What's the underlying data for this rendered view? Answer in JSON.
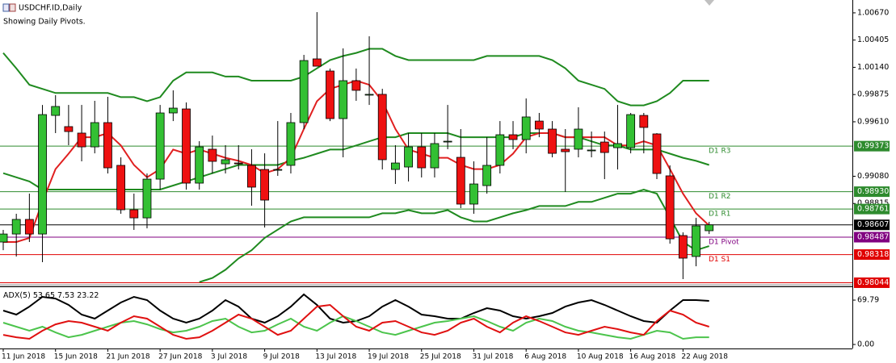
{
  "chart_data": [
    {
      "type": "candlestick",
      "title": "USDCHF.ID,Daily",
      "subtitle": "Showing Daily Pivots.",
      "categories": [
        "11 Jun 2018",
        null,
        null,
        null,
        "15 Jun 2018",
        null,
        null,
        null,
        "21 Jun 2018",
        null,
        null,
        null,
        "27 Jun 2018",
        null,
        null,
        null,
        "3 Jul 2018",
        null,
        null,
        null,
        "9 Jul 2018",
        null,
        null,
        null,
        "13 Jul 2018",
        null,
        null,
        null,
        "19 Jul 2018",
        null,
        null,
        null,
        "25 Jul 2018",
        null,
        null,
        null,
        "31 Jul 2018",
        null,
        null,
        null,
        "6 Aug 2018",
        null,
        null,
        null,
        "10 Aug 2018",
        null,
        null,
        null,
        "16 Aug 2018",
        null,
        null,
        null,
        "22 Aug 2018",
        null,
        null
      ],
      "open": [
        0.9844,
        0.98518,
        0.9866,
        0.98518,
        0.99672,
        0.99563,
        0.995,
        0.99366,
        0.99602,
        0.99186,
        0.98754,
        0.98675,
        0.99052,
        0.99696,
        0.99735,
        0.99013,
        0.99343,
        0.99201,
        0.99209,
        0.99186,
        0.99146,
        0.99146,
        0.99186,
        0.99602,
        1.00222,
        1.00104,
        0.99641,
        1.0001,
        0.99877,
        0.99877,
        0.99146,
        0.9917,
        0.99366,
        0.99162,
        0.99421,
        0.99264,
        0.98809,
        0.98989,
        0.99186,
        0.99484,
        0.99437,
        0.99617,
        0.99539,
        0.99343,
        0.99343,
        0.99335,
        0.99413,
        0.99358,
        0.99358,
        0.99672,
        0.99492,
        0.99084,
        0.98503,
        0.98299,
        0.9855
      ],
      "high": [
        0.98558,
        0.98715,
        0.98911,
        0.99774,
        0.99869,
        0.99774,
        0.99774,
        0.99814,
        0.99853,
        0.99264,
        0.98911,
        0.99107,
        0.99774,
        0.99916,
        0.99798,
        0.99421,
        0.99476,
        0.99382,
        0.99382,
        0.99343,
        0.99303,
        0.99617,
        0.99696,
        1.00261,
        1.00677,
        1.00128,
        1.00324,
        1.00128,
        1.00442,
        0.99931,
        0.99382,
        0.995,
        0.995,
        0.995,
        0.99774,
        0.99539,
        0.99225,
        0.9946,
        0.99617,
        0.99617,
        0.99837,
        0.99696,
        0.99617,
        0.99539,
        0.99751,
        0.99515,
        0.99515,
        0.99774,
        0.99696,
        0.99696,
        0.995,
        0.99186,
        0.98534,
        0.98675,
        0.98636
      ],
      "low": [
        0.98361,
        0.98299,
        0.9844,
        0.98244,
        0.995,
        0.99382,
        0.99225,
        0.99303,
        0.99107,
        0.98715,
        0.98558,
        0.98573,
        0.9895,
        0.99617,
        0.9895,
        0.9895,
        0.99107,
        0.99107,
        0.99146,
        0.98793,
        0.98581,
        0.99084,
        0.99107,
        0.99539,
        1.00151,
        0.99617,
        0.99264,
        0.99814,
        0.99774,
        0.99146,
        0.99005,
        0.99029,
        0.99068,
        0.99068,
        0.99343,
        0.9877,
        0.98715,
        0.98911,
        0.99107,
        0.99343,
        0.99303,
        0.9946,
        0.99264,
        0.98927,
        0.99264,
        0.99264,
        0.99052,
        0.99146,
        0.99303,
        0.99303,
        0.99052,
        0.98424,
        0.98079,
        0.98204,
        0.98518
      ],
      "close": [
        0.98518,
        0.9866,
        0.98518,
        0.9968,
        0.99759,
        0.99515,
        0.99366,
        0.99602,
        0.99162,
        0.98754,
        0.98675,
        0.99052,
        0.99696,
        0.99743,
        0.99013,
        0.99366,
        0.99225,
        0.99241,
        0.99201,
        0.98974,
        0.98848,
        0.99146,
        0.99602,
        1.00206,
        1.00151,
        0.99641,
        1.0001,
        0.99916,
        0.99877,
        0.99241,
        0.99209,
        0.99366,
        0.99162,
        0.99398,
        0.99421,
        0.98809,
        0.99005,
        0.99186,
        0.99484,
        0.99437,
        0.99657,
        0.99539,
        0.99303,
        0.99319,
        0.99539,
        0.99335,
        0.99311,
        0.99398,
        0.9968,
        0.99555,
        0.99107,
        0.98471,
        0.98283,
        0.98597,
        0.98607
      ],
      "up_color": "#33c033",
      "down_color": "#ee1111",
      "lines": [
        {
          "color": "#1f8a1f",
          "values": [
            1.0028,
            1.0013,
            0.9997,
            0.9993,
            0.9989,
            0.9989,
            0.9989,
            0.9989,
            0.9989,
            0.9985,
            0.9985,
            0.9981,
            0.9985,
            1.0001,
            1.0009,
            1.0009,
            1.0009,
            1.0005,
            1.0005,
            1.0001,
            1.0001,
            1.0001,
            1.0001,
            1.0005,
            1.0013,
            1.0021,
            1.0025,
            1.0028,
            1.0032,
            1.0032,
            1.0025,
            1.0021,
            1.0021,
            1.0021,
            1.0021,
            1.0021,
            1.0021,
            1.0025,
            1.0025,
            1.0025,
            1.0025,
            1.0025,
            1.0021,
            1.0013,
            1.0001,
            0.9997,
            0.9993,
            0.9981,
            0.9977,
            0.9977,
            0.9981,
            0.9989,
            1.0001,
            1.0001,
            1.0001
          ]
        },
        {
          "color": "#1f8a1f",
          "values": [
            0.9911,
            0.9907,
            0.9903,
            0.9895,
            0.9895,
            0.9895,
            0.9895,
            0.9895,
            0.9895,
            0.9895,
            0.9895,
            0.9895,
            0.9895,
            0.9899,
            0.9903,
            0.9907,
            0.9911,
            0.9915,
            0.9919,
            0.9919,
            0.9919,
            0.9919,
            0.9923,
            0.9926,
            0.993,
            0.9934,
            0.9934,
            0.9938,
            0.9942,
            0.9946,
            0.9946,
            0.995,
            0.995,
            0.995,
            0.995,
            0.9946,
            0.9946,
            0.9946,
            0.9946,
            0.9946,
            0.995,
            0.995,
            0.995,
            0.9946,
            0.9946,
            0.9942,
            0.9938,
            0.9938,
            0.9934,
            0.9934,
            0.9934,
            0.993,
            0.9926,
            0.9923,
            0.9919
          ]
        },
        {
          "color": "#1f8a1f",
          "values": [
            null,
            null,
            null,
            null,
            null,
            null,
            null,
            null,
            null,
            null,
            null,
            null,
            null,
            null,
            null,
            0.9805,
            0.9809,
            0.9817,
            0.9828,
            0.9836,
            0.9848,
            0.9856,
            0.9864,
            0.9868,
            0.9868,
            0.9868,
            0.9868,
            0.9868,
            0.9868,
            0.9872,
            0.9872,
            0.9875,
            0.9872,
            0.9872,
            0.9875,
            0.9868,
            0.9864,
            0.9864,
            0.9868,
            0.9872,
            0.9875,
            0.9879,
            0.9879,
            0.9879,
            0.9883,
            0.9883,
            0.9887,
            0.9891,
            0.9891,
            0.9895,
            0.9891,
            0.9868,
            0.9844,
            0.9836,
            0.984
          ]
        },
        {
          "color": "#e02020",
          "values": [
            0.9844,
            0.9844,
            0.9848,
            0.9883,
            0.9915,
            0.993,
            0.9946,
            0.9946,
            0.995,
            0.9938,
            0.9919,
            0.9907,
            0.9915,
            0.9934,
            0.993,
            0.9934,
            0.993,
            0.9926,
            0.9923,
            0.9919,
            0.9911,
            0.9915,
            0.9926,
            0.9954,
            0.9981,
            0.9993,
            0.9997,
            1.0001,
            0.9997,
            0.9981,
            0.9954,
            0.9934,
            0.993,
            0.9926,
            0.9926,
            0.9919,
            0.9915,
            0.9915,
            0.9919,
            0.993,
            0.9946,
            0.995,
            0.995,
            0.9946,
            0.9946,
            0.9946,
            0.9946,
            0.9938,
            0.9938,
            0.9942,
            0.9938,
            0.9915,
            0.9891,
            0.9872,
            0.986
          ]
        }
      ],
      "pivots": [
        {
          "name": "D1 R3",
          "price": 0.99373,
          "color": "#2e8b2e"
        },
        {
          "name": "D1 R2",
          "price": {
            "value": 0.9893,
            "label": "0.98930"
          },
          "color": "#2e8b2e"
        },
        {
          "name": "D1 R1",
          "price": 0.98761,
          "color": "#2e8b2e"
        },
        {
          "name": "D1 Pivot",
          "price": 0.98487,
          "color": "#800080"
        },
        {
          "name": "D1 S1",
          "price": 0.98318,
          "color": "#e00000"
        },
        {
          "price": 0.98044,
          "color": "#e00000"
        }
      ],
      "last_price": 0.98607,
      "last_price_color": "#000000",
      "ylim": [
        0.98032,
        1.00795
      ],
      "yticks": [
        {
          "value": 1.0067,
          "label": "1.00670"
        },
        1.00405,
        {
          "value": 1.0014,
          "label": "1.00140"
        },
        0.99875,
        {
          "value": 0.9961,
          "label": "0.99610"
        },
        {
          "value": 0.9908,
          "label": "0.99080"
        },
        0.98815
      ],
      "grid": false
    },
    {
      "type": "line",
      "title": "ADX(5)",
      "readouts": [
        53.65,
        7.53,
        23.22
      ],
      "series": [
        {
          "color": "#000000",
          "values": [
            53.3,
            47.0,
            59.6,
            74.9,
            72.3,
            62.2,
            47.0,
            40.6,
            53.3,
            66.0,
            74.9,
            69.8,
            53.3,
            40.6,
            34.3,
            40.6,
            53.3,
            69.8,
            59.6,
            40.6,
            34.3,
            44.4,
            59.6,
            78.7,
            62.2,
            40.6,
            34.3,
            36.8,
            44.4,
            59.6,
            69.8,
            59.6,
            47.0,
            44.4,
            40.6,
            40.6,
            49.5,
            57.1,
            53.3,
            44.4,
            40.6,
            44.4,
            49.5,
            59.6,
            66.0,
            69.8,
            62.2,
            53.3,
            44.4,
            36.8,
            34.3,
            53.3,
            69.8,
            69.8,
            68.5
          ]
        },
        {
          "color": "#4cc44c",
          "values": [
            34.3,
            27.9,
            21.6,
            27.9,
            19.0,
            11.4,
            15.2,
            21.6,
            27.9,
            34.3,
            36.8,
            31.7,
            24.1,
            19.0,
            21.6,
            27.9,
            36.8,
            40.6,
            27.9,
            19.0,
            21.6,
            31.7,
            40.6,
            27.9,
            21.6,
            34.3,
            44.4,
            36.8,
            27.9,
            19.0,
            15.2,
            21.6,
            27.9,
            34.3,
            36.8,
            40.6,
            44.4,
            36.8,
            27.9,
            21.6,
            34.3,
            40.6,
            36.8,
            27.9,
            21.6,
            19.0,
            15.2,
            11.4,
            8.9,
            15.2,
            21.6,
            19.0,
            8.9,
            11.4,
            11.4
          ]
        },
        {
          "color": "#e01010",
          "values": [
            15.2,
            11.4,
            8.9,
            21.6,
            31.7,
            36.8,
            34.3,
            27.9,
            21.6,
            34.3,
            44.4,
            40.6,
            27.9,
            15.2,
            8.9,
            11.4,
            21.6,
            34.3,
            47.0,
            40.6,
            27.9,
            15.2,
            21.6,
            40.6,
            59.6,
            62.2,
            44.4,
            27.9,
            21.6,
            34.3,
            36.8,
            27.9,
            19.0,
            15.2,
            21.6,
            34.3,
            40.6,
            27.9,
            19.0,
            34.3,
            44.4,
            36.8,
            27.9,
            19.0,
            15.2,
            21.6,
            27.9,
            24.1,
            19.0,
            15.2,
            36.8,
            53.3,
            47.0,
            34.3,
            27.9
          ]
        }
      ],
      "ylim": [
        -6.3,
        91.4
      ],
      "yticks": [
        69.79,
        {
          "value": 0,
          "label": "0.00"
        }
      ]
    }
  ]
}
